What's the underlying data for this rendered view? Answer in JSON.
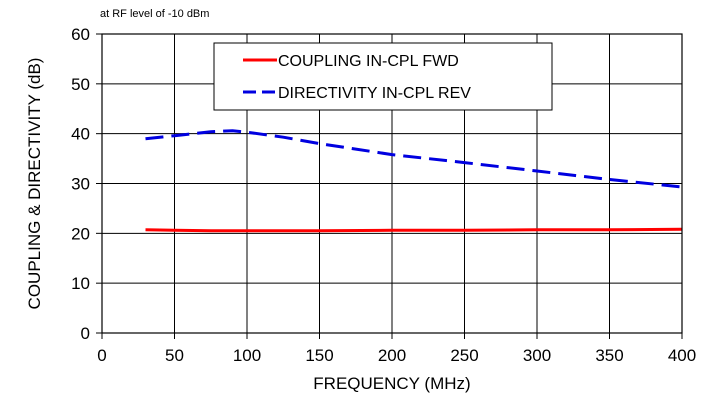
{
  "chart_data": {
    "type": "line",
    "annotation": "at RF level of -10 dBm",
    "xlabel": "FREQUENCY (MHz)",
    "ylabel": "COUPLING & DIRECTIVITY (dB)",
    "xlim": [
      0,
      400
    ],
    "ylim": [
      0,
      60
    ],
    "xticks": [
      0,
      50,
      100,
      150,
      200,
      250,
      300,
      350,
      400
    ],
    "yticks": [
      0,
      10,
      20,
      30,
      40,
      50,
      60
    ],
    "grid": true,
    "legend_position": "top-center",
    "series": [
      {
        "name": "COUPLING IN-CPL FWD",
        "color": "#ff0000",
        "style": "solid",
        "x": [
          30,
          50,
          75,
          100,
          150,
          200,
          250,
          300,
          350,
          400
        ],
        "y": [
          20.7,
          20.6,
          20.5,
          20.5,
          20.5,
          20.6,
          20.6,
          20.7,
          20.7,
          20.8
        ]
      },
      {
        "name": "DIRECTIVITY IN-CPL REV",
        "color": "#0000e0",
        "style": "dashed",
        "x": [
          30,
          50,
          75,
          90,
          100,
          125,
          150,
          200,
          250,
          300,
          350,
          400
        ],
        "y": [
          39.0,
          39.6,
          40.4,
          40.6,
          40.3,
          39.3,
          38.0,
          35.8,
          34.2,
          32.5,
          30.8,
          29.3
        ]
      }
    ]
  }
}
